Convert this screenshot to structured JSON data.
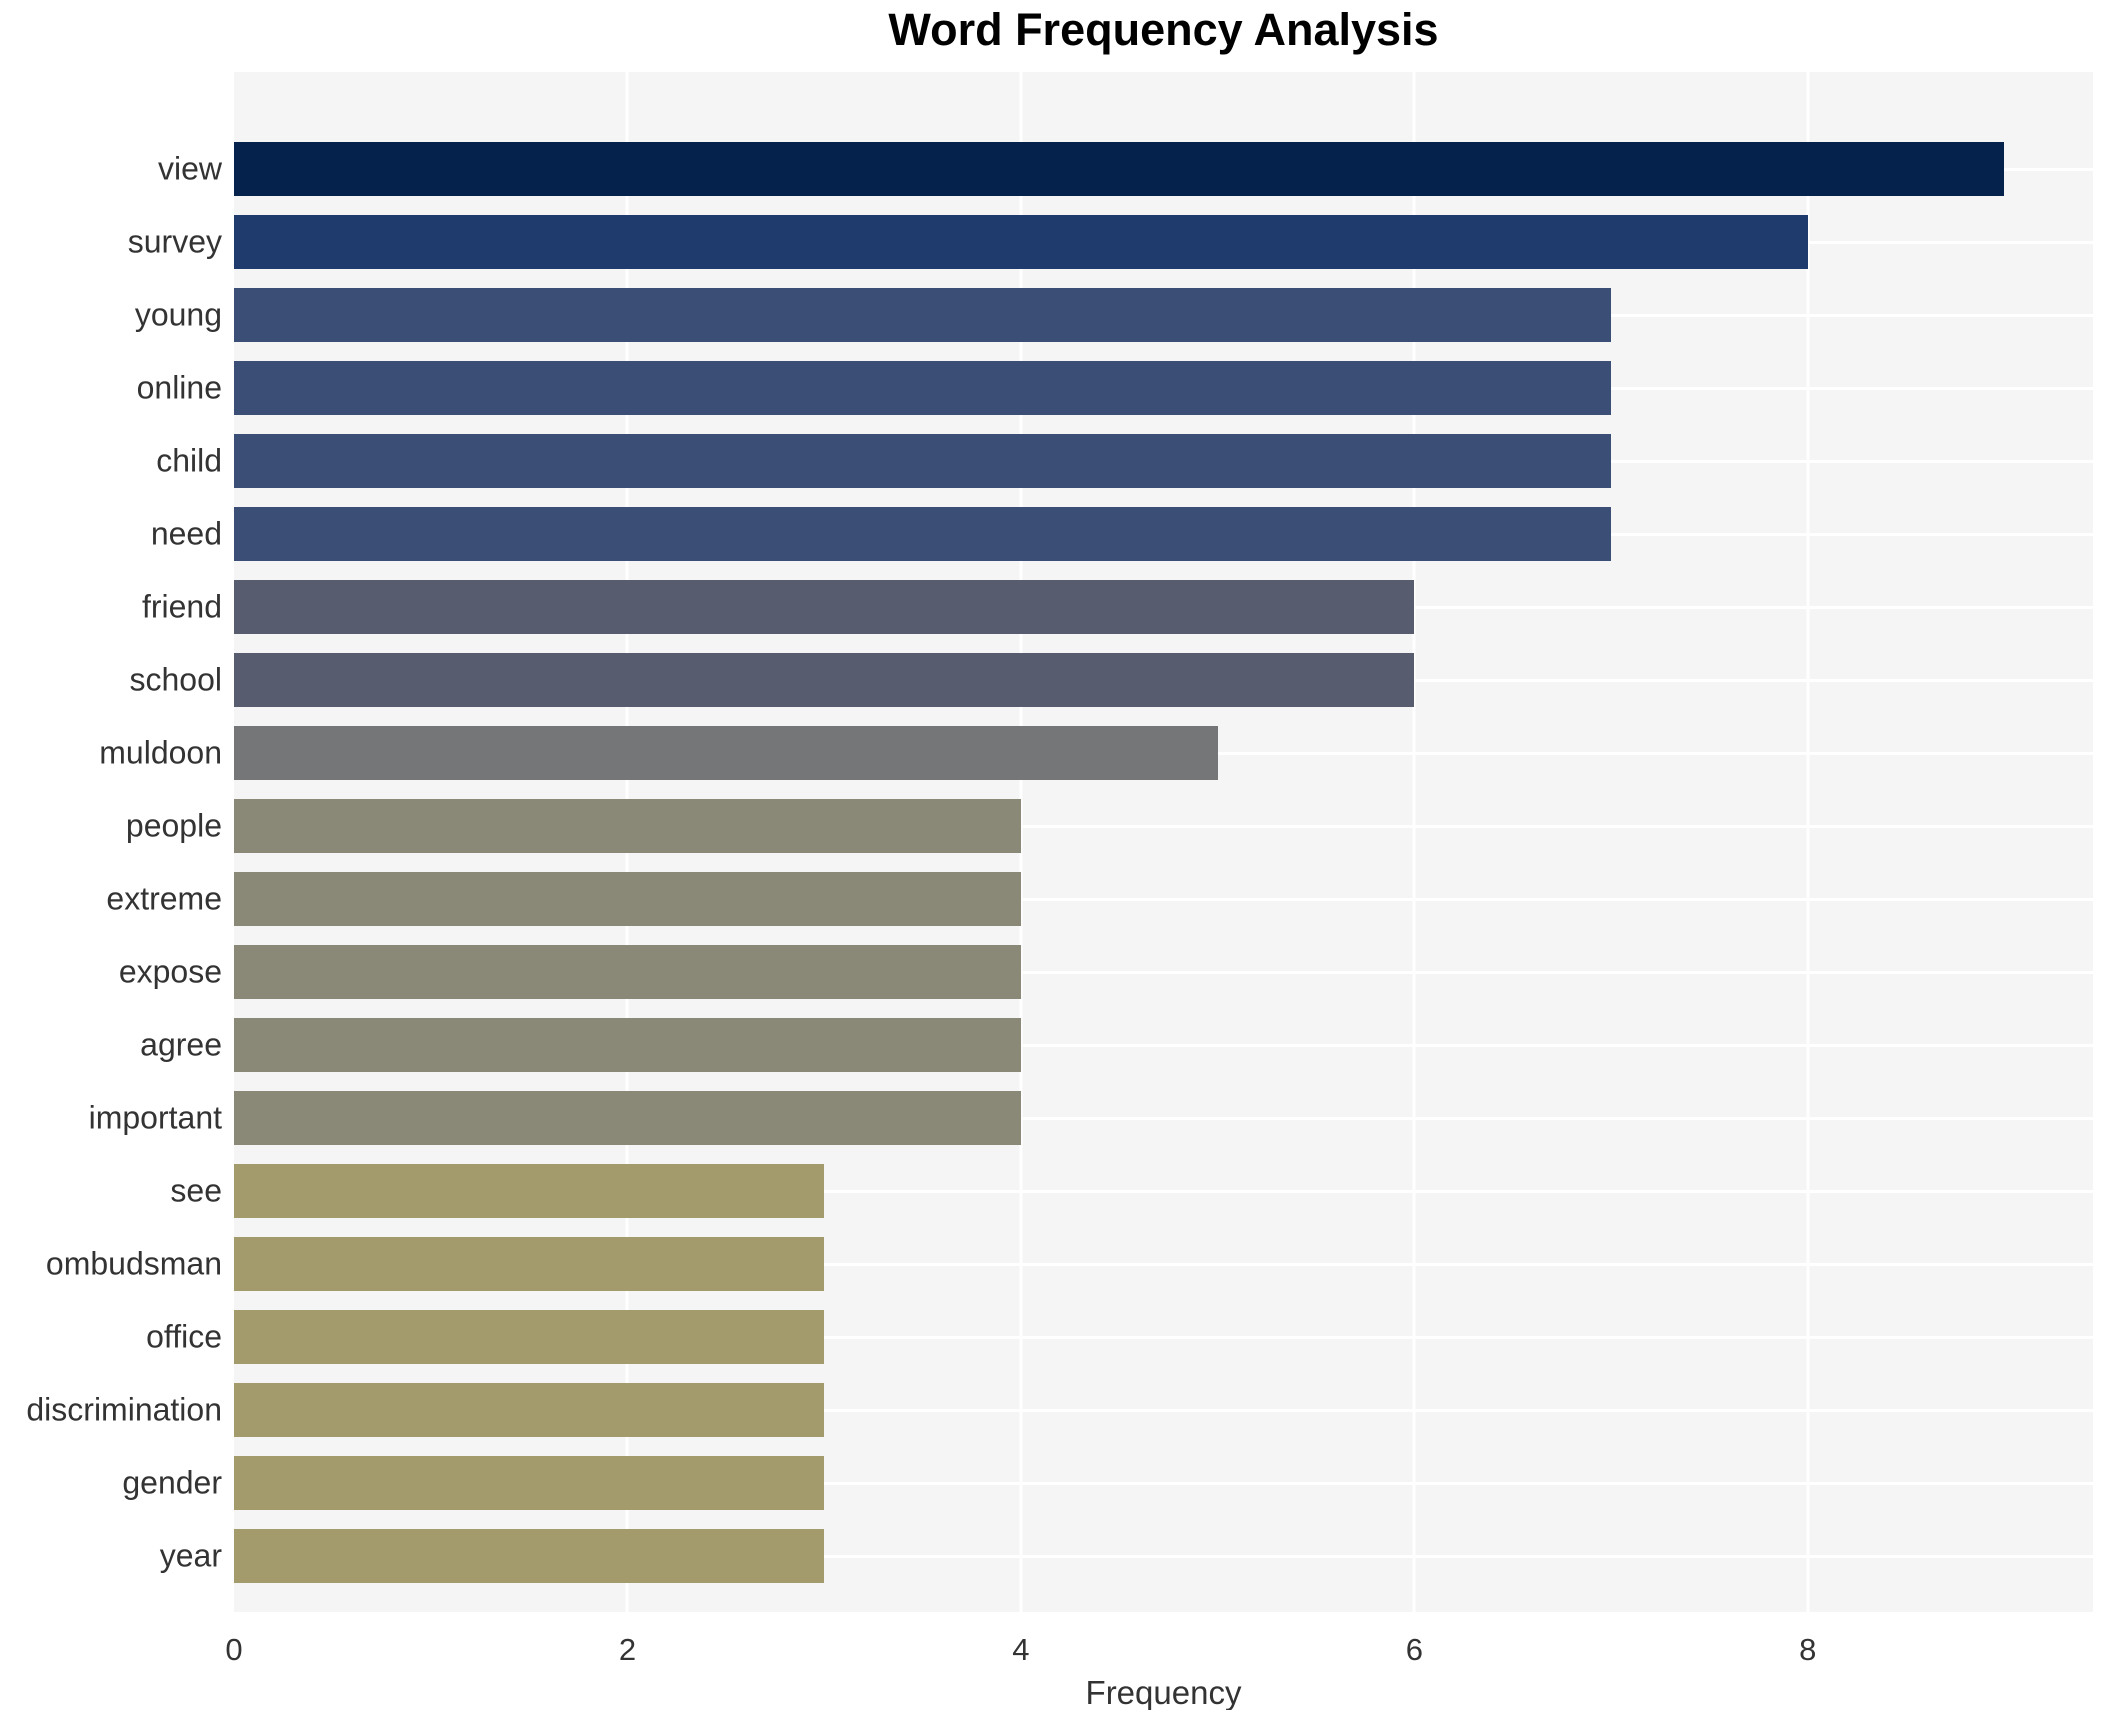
{
  "title": "Word Frequency Analysis",
  "chart_data": {
    "type": "bar",
    "orientation": "horizontal",
    "title": "Word Frequency Analysis",
    "xlabel": "Frequency",
    "ylabel": "",
    "xlim": [
      0,
      9.45
    ],
    "xticks": [
      0,
      2,
      4,
      6,
      8
    ],
    "grid": true,
    "legend": false,
    "categories": [
      "view",
      "survey",
      "young",
      "online",
      "child",
      "need",
      "friend",
      "school",
      "muldoon",
      "people",
      "extreme",
      "expose",
      "agree",
      "important",
      "see",
      "ombudsman",
      "office",
      "discrimination",
      "gender",
      "year"
    ],
    "values": [
      9,
      8,
      7,
      7,
      7,
      7,
      6,
      6,
      5,
      4,
      4,
      4,
      4,
      4,
      3,
      3,
      3,
      3,
      3,
      3
    ],
    "bar_colors": [
      "#04224c",
      "#1f3a6c",
      "#3b4e75",
      "#3b4e75",
      "#3b4e75",
      "#3b4e75",
      "#575d6e",
      "#575d6e",
      "#757678",
      "#8a8876",
      "#8a8876",
      "#8a8876",
      "#8a8876",
      "#8a8876",
      "#a49b6c",
      "#a49b6c",
      "#a49b6c",
      "#a49b6c",
      "#a49b6c",
      "#a49b6c"
    ]
  },
  "colors": {
    "figure_background": "#ffffff",
    "plot_background": "#f5f5f6",
    "gridline": "#ffffff",
    "text": "#333333",
    "title_text": "#000000"
  }
}
